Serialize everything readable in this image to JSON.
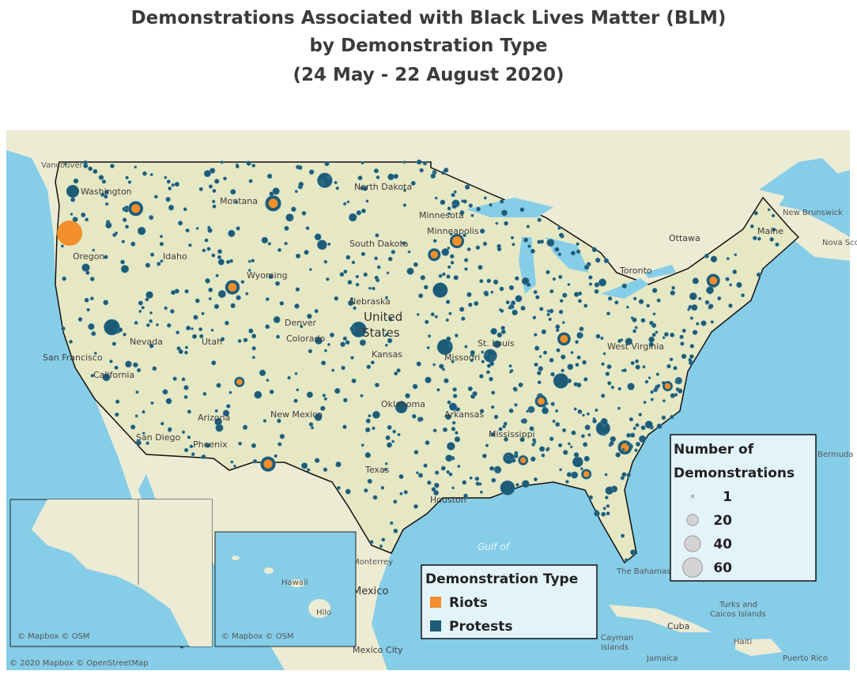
{
  "title": [
    "Demonstrations Associated with Black Lives Matter (BLM)",
    "by Demonstration Type",
    "(24 May - 22 August 2020)"
  ],
  "map_labels": [
    "Vancouver",
    "Washington",
    "Montana",
    "North Dakota",
    "Minnesota",
    "Minneapolis",
    "South Dakota",
    "Idaho",
    "Oregon",
    "Wyoming",
    "Nebraska",
    "United",
    "States",
    "Nevada",
    "Utah",
    "Denver",
    "Colorado",
    "Kansas",
    "Missouri",
    "St. Louis",
    "San Francisco",
    "California",
    "Arizona",
    "Phoenix",
    "New Mexico",
    "Oklahoma",
    "Arkansas",
    "Mississippi",
    "Texas",
    "Houston",
    "San Diego",
    "Ottawa",
    "Toronto",
    "Maine",
    "New Brunswick",
    "Nova Scotia",
    "West Virginia",
    "Bermuda",
    "Gulf of",
    "Monterrey",
    "Mexico",
    "Mexico City",
    "The Bahamas",
    "Cuba",
    "Turks and",
    "Caicos Islands",
    "Haiti",
    "Jamaica",
    "Puerto Rico",
    "Cayman",
    "Islands",
    "Hawaii",
    "Hilo"
  ],
  "type_legend": {
    "title": "Demonstration Type",
    "items": [
      {
        "name": "Riots",
        "color": "#f28e2b"
      },
      {
        "name": "Protests",
        "color": "#1d5b77"
      }
    ]
  },
  "size_legend": {
    "title": [
      "Number of",
      "Demonstrations"
    ],
    "values": [
      1,
      20,
      40,
      60
    ]
  },
  "insets": [
    {
      "attribution": "© Mapbox © OSM"
    },
    {
      "attribution": "© Mapbox © OSM"
    }
  ],
  "attribution": "© 2020 Mapbox © OpenStreetMap"
}
